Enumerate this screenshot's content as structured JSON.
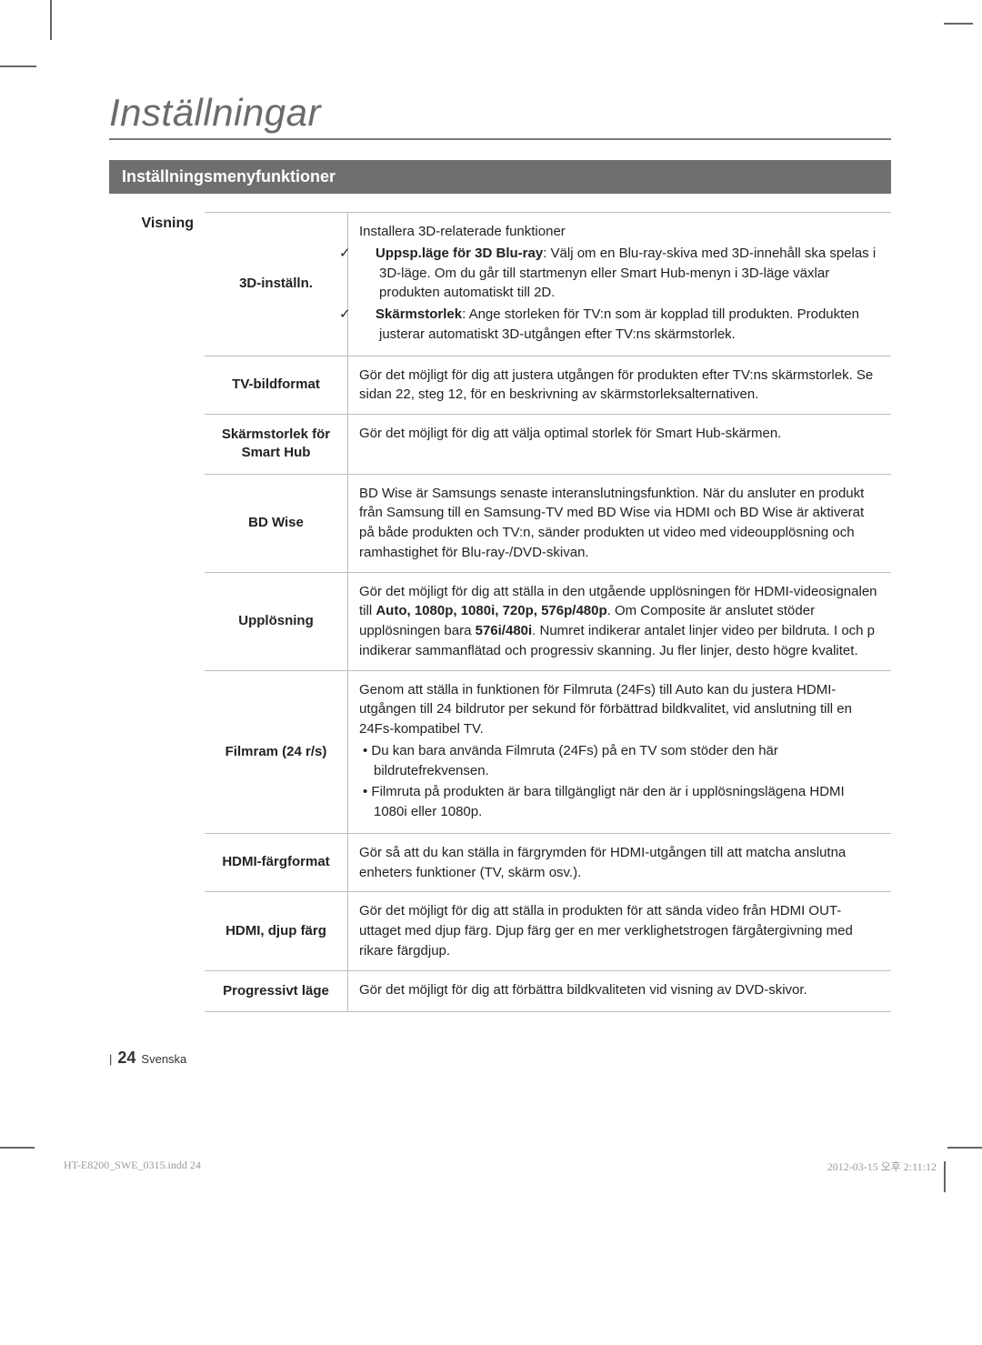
{
  "page": {
    "title": "Inställningar",
    "section_header": "Inställningsmenyfunktioner",
    "category": "Visning",
    "page_number": "24",
    "page_lang": "Svenska",
    "footer_left": "HT-E8200_SWE_0315.indd   24",
    "footer_right": "2012-03-15   오후 2:11:12"
  },
  "rows": {
    "r1": {
      "label": "3D-inställn.",
      "intro": "Installera 3D-relaterade funktioner",
      "c1_bold": "Uppsp.läge för 3D Blu-ray",
      "c1_rest": ": Välj om en Blu-ray-skiva med 3D-innehåll ska spelas i 3D-läge. Om du går till startmenyn eller Smart Hub-menyn i 3D-läge växlar produkten automatiskt till 2D.",
      "c2_bold": "Skärmstorlek",
      "c2_rest": ": Ange storleken för TV:n som är kopplad till produkten. Produkten justerar automatiskt 3D-utgången efter TV:ns skärmstorlek."
    },
    "r2": {
      "label": "TV-bildformat",
      "desc": "Gör det möjligt för dig att justera utgången för produkten efter TV:ns skärmstorlek. Se sidan 22, steg 12, för en beskrivning av skärmstorleksalternativen."
    },
    "r3": {
      "label": "Skärmstorlek för Smart Hub",
      "desc": "Gör det möjligt för dig att välja optimal storlek för Smart Hub-skärmen."
    },
    "r4": {
      "label": "BD Wise",
      "desc": "BD Wise är Samsungs senaste interanslutningsfunktion. När du ansluter en produkt från Samsung till en Samsung-TV med BD Wise via HDMI och BD Wise är aktiverat på både produkten och TV:n, sänder produkten ut video med videoupplösning och ramhastighet för Blu-ray-/DVD-skivan."
    },
    "r5": {
      "label": "Upplösning",
      "pre": "Gör det möjligt för dig att ställa in den utgående upplösningen för HDMI-videosignalen till ",
      "b1": "Auto, 1080p, 1080i, 720p, 576p/480p",
      "mid": ". Om Composite är anslutet stöder upplösningen bara ",
      "b2": "576i/480i",
      "post": ". Numret indikerar antalet linjer video per bildruta. I och p indikerar sammanflätad och progressiv skanning. Ju fler linjer, desto högre kvalitet."
    },
    "r6": {
      "label": "Filmram (24 r/s)",
      "p1": "Genom att ställa in funktionen för Filmruta (24Fs) till Auto kan du justera HDMI-utgången till 24 bildrutor per sekund för förbättrad bildkvalitet, vid anslutning till en 24Fs-kompatibel TV.",
      "b1": "Du kan bara använda Filmruta (24Fs) på en TV som stöder den här bildrutefrekvensen.",
      "b2": "Filmruta på produkten är bara tillgängligt när den är i upplösningslägena HDMI 1080i eller 1080p."
    },
    "r7": {
      "label": "HDMI-färgformat",
      "desc": "Gör så att du kan ställa in färgrymden för HDMI-utgången till att matcha anslutna enheters funktioner (TV, skärm osv.)."
    },
    "r8": {
      "label": "HDMI, djup färg",
      "desc": "Gör det möjligt för dig att ställa in produkten för att sända video från HDMI OUT-uttaget med djup färg. Djup färg ger en mer verklighetstrogen färgåtergivning med rikare färgdjup."
    },
    "r9": {
      "label": "Progressivt läge",
      "desc": "Gör det möjligt för dig att förbättra bildkvaliteten vid visning av DVD-skivor."
    }
  }
}
